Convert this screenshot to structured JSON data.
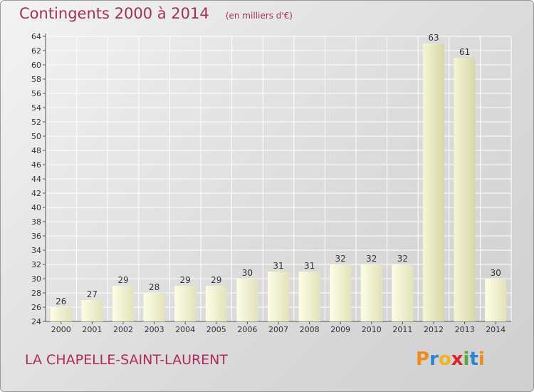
{
  "title": "Contingents 2000 à 2014",
  "unit": "(en milliers d'€)",
  "commune": "LA CHAPELLE-SAINT-LAURENT",
  "logo": {
    "letters": [
      "P",
      "r",
      "o",
      "x",
      "i",
      "t",
      "i"
    ],
    "colors": [
      "#f08c1e",
      "#2a86d0",
      "#f0b41e",
      "#d8252b",
      "#5aa83a",
      "#2a86d0",
      "#f08c1e"
    ]
  },
  "colors": {
    "title": "#a0315a",
    "bar_light": "#fdfde6",
    "bar_dark": "#e2e2bb",
    "bar_highlight_dark": "#d6d6a8"
  },
  "chart_data": {
    "type": "bar",
    "title": "Contingents 2000 à 2014",
    "subtitle": "(en milliers d'€)",
    "categories": [
      "2000",
      "2001",
      "2002",
      "2003",
      "2004",
      "2005",
      "2006",
      "2007",
      "2008",
      "2009",
      "2010",
      "2011",
      "2012",
      "2013",
      "2014"
    ],
    "values": [
      26,
      27,
      29,
      28,
      29,
      29,
      30,
      31,
      31,
      32,
      32,
      32,
      63,
      61,
      30
    ],
    "value_labels": [
      "26",
      "27",
      "29",
      "28",
      "29",
      "29",
      "30",
      "31",
      "31",
      "32",
      "32",
      "32",
      "63",
      "61",
      "30"
    ],
    "ylim": [
      24,
      64
    ],
    "yticks": [
      24,
      26,
      28,
      30,
      32,
      34,
      36,
      38,
      40,
      42,
      44,
      46,
      48,
      50,
      52,
      54,
      56,
      58,
      60,
      62,
      64
    ],
    "grid": true,
    "legend": "none"
  }
}
